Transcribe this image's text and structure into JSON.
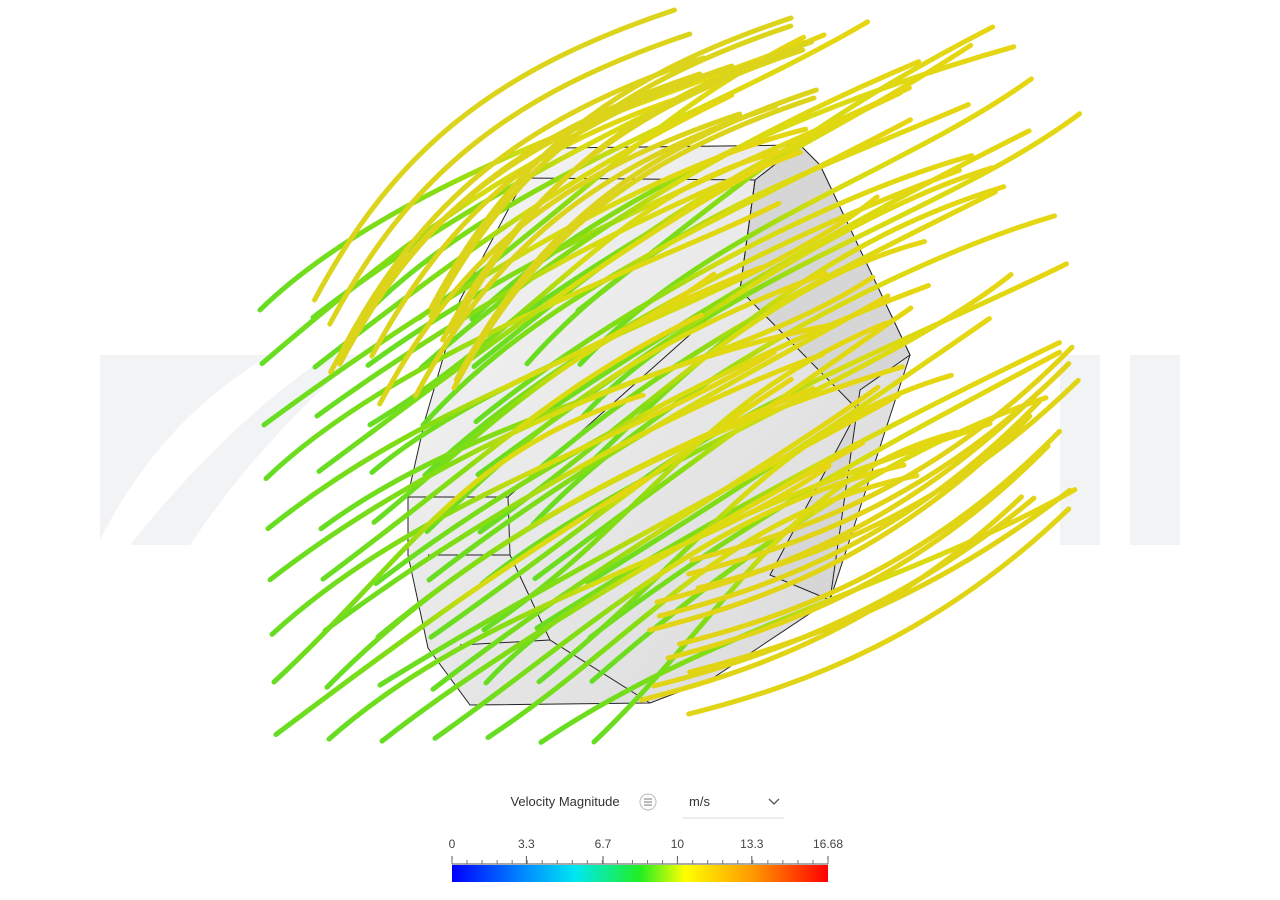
{
  "legend": {
    "title": "Velocity Magnitude",
    "unit": "m/s",
    "range": [
      0,
      16.68
    ],
    "ticks": [
      0,
      3.3,
      6.7,
      10,
      13.3,
      16.68
    ]
  }
}
